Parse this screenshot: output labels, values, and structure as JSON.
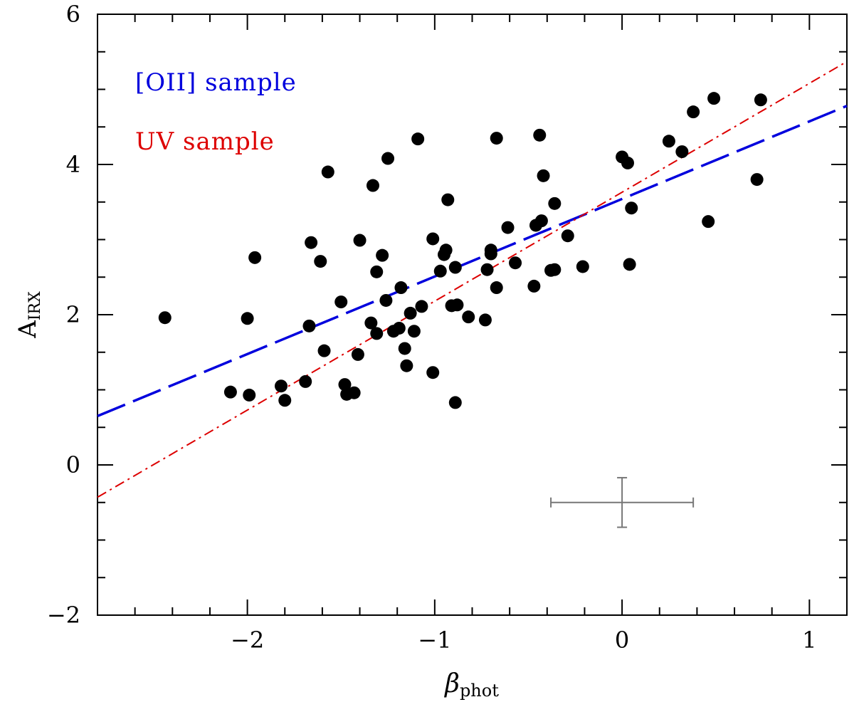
{
  "chart_data": {
    "type": "scatter",
    "title": "",
    "xlabel": {
      "main": "β",
      "sub": "phot"
    },
    "ylabel": {
      "main": "A",
      "sub": "IRX"
    },
    "xlim": [
      -2.8,
      1.2
    ],
    "ylim": [
      -2,
      6
    ],
    "x_ticks": [
      {
        "value": -2,
        "label": "−2"
      },
      {
        "value": -1,
        "label": "−1"
      },
      {
        "value": 0,
        "label": "0"
      },
      {
        "value": 1,
        "label": "1"
      }
    ],
    "y_ticks": [
      {
        "value": -2,
        "label": "−2"
      },
      {
        "value": 0,
        "label": "0"
      },
      {
        "value": 2,
        "label": "2"
      },
      {
        "value": 4,
        "label": "4"
      },
      {
        "value": 6,
        "label": "6"
      }
    ],
    "x_minor_step": 0.2,
    "y_minor_step": 0.5,
    "grid": false,
    "legend_position": "top-left",
    "series": [
      {
        "name": "",
        "type": "scatter",
        "color": "#000000",
        "points": [
          [
            -2.44,
            1.96
          ],
          [
            -2.09,
            0.97
          ],
          [
            -2.0,
            1.95
          ],
          [
            -1.99,
            0.93
          ],
          [
            -1.96,
            2.76
          ],
          [
            -1.82,
            1.05
          ],
          [
            -1.8,
            0.86
          ],
          [
            -1.69,
            1.11
          ],
          [
            -1.67,
            1.85
          ],
          [
            -1.66,
            2.96
          ],
          [
            -1.61,
            2.71
          ],
          [
            -1.59,
            1.52
          ],
          [
            -1.57,
            3.9
          ],
          [
            -1.5,
            2.17
          ],
          [
            -1.48,
            1.07
          ],
          [
            -1.47,
            0.94
          ],
          [
            -1.43,
            0.96
          ],
          [
            -1.41,
            1.47
          ],
          [
            -1.4,
            2.99
          ],
          [
            -1.34,
            1.89
          ],
          [
            -1.33,
            3.72
          ],
          [
            -1.31,
            2.57
          ],
          [
            -1.31,
            1.75
          ],
          [
            -1.28,
            2.79
          ],
          [
            -1.26,
            2.19
          ],
          [
            -1.25,
            4.08
          ],
          [
            -1.22,
            1.78
          ],
          [
            -1.19,
            1.82
          ],
          [
            -1.18,
            2.36
          ],
          [
            -1.16,
            1.55
          ],
          [
            -1.15,
            1.32
          ],
          [
            -1.13,
            2.02
          ],
          [
            -1.11,
            1.78
          ],
          [
            -1.09,
            4.34
          ],
          [
            -1.07,
            2.11
          ],
          [
            -1.01,
            3.01
          ],
          [
            -1.01,
            1.23
          ],
          [
            -0.97,
            2.58
          ],
          [
            -0.95,
            2.8
          ],
          [
            -0.94,
            2.86
          ],
          [
            -0.93,
            3.53
          ],
          [
            -0.91,
            2.12
          ],
          [
            -0.89,
            2.63
          ],
          [
            -0.89,
            0.83
          ],
          [
            -0.88,
            2.13
          ],
          [
            -0.82,
            1.97
          ],
          [
            -0.73,
            1.93
          ],
          [
            -0.72,
            2.6
          ],
          [
            -0.7,
            2.86
          ],
          [
            -0.7,
            2.81
          ],
          [
            -0.67,
            4.35
          ],
          [
            -0.67,
            2.36
          ],
          [
            -0.61,
            3.16
          ],
          [
            -0.57,
            2.69
          ],
          [
            -0.47,
            2.38
          ],
          [
            -0.46,
            3.19
          ],
          [
            -0.44,
            4.39
          ],
          [
            -0.43,
            3.25
          ],
          [
            -0.42,
            3.85
          ],
          [
            -0.38,
            2.59
          ],
          [
            -0.36,
            2.6
          ],
          [
            -0.36,
            3.48
          ],
          [
            -0.29,
            3.05
          ],
          [
            -0.21,
            2.64
          ],
          [
            0.0,
            4.1
          ],
          [
            0.03,
            4.02
          ],
          [
            0.04,
            2.67
          ],
          [
            0.05,
            3.42
          ],
          [
            0.25,
            4.31
          ],
          [
            0.32,
            4.17
          ],
          [
            0.38,
            4.7
          ],
          [
            0.46,
            3.24
          ],
          [
            0.49,
            4.88
          ],
          [
            0.72,
            3.8
          ],
          [
            0.74,
            4.86
          ]
        ]
      },
      {
        "name": "[OII] sample",
        "type": "line",
        "style": "long-dash",
        "color": "#0000dd",
        "x": [
          -2.8,
          1.2
        ],
        "y": [
          0.65,
          4.78
        ]
      },
      {
        "name": "UV sample",
        "type": "line",
        "style": "dash-dot",
        "color": "#dd0000",
        "x": [
          -2.8,
          1.2
        ],
        "y": [
          -0.43,
          5.37
        ]
      }
    ],
    "error_bar": {
      "x": 0.0,
      "y": -0.5,
      "x_minus": 0.38,
      "x_plus": 0.38,
      "y_minus": 0.33,
      "y_plus": 0.33,
      "color": "#777777"
    }
  }
}
